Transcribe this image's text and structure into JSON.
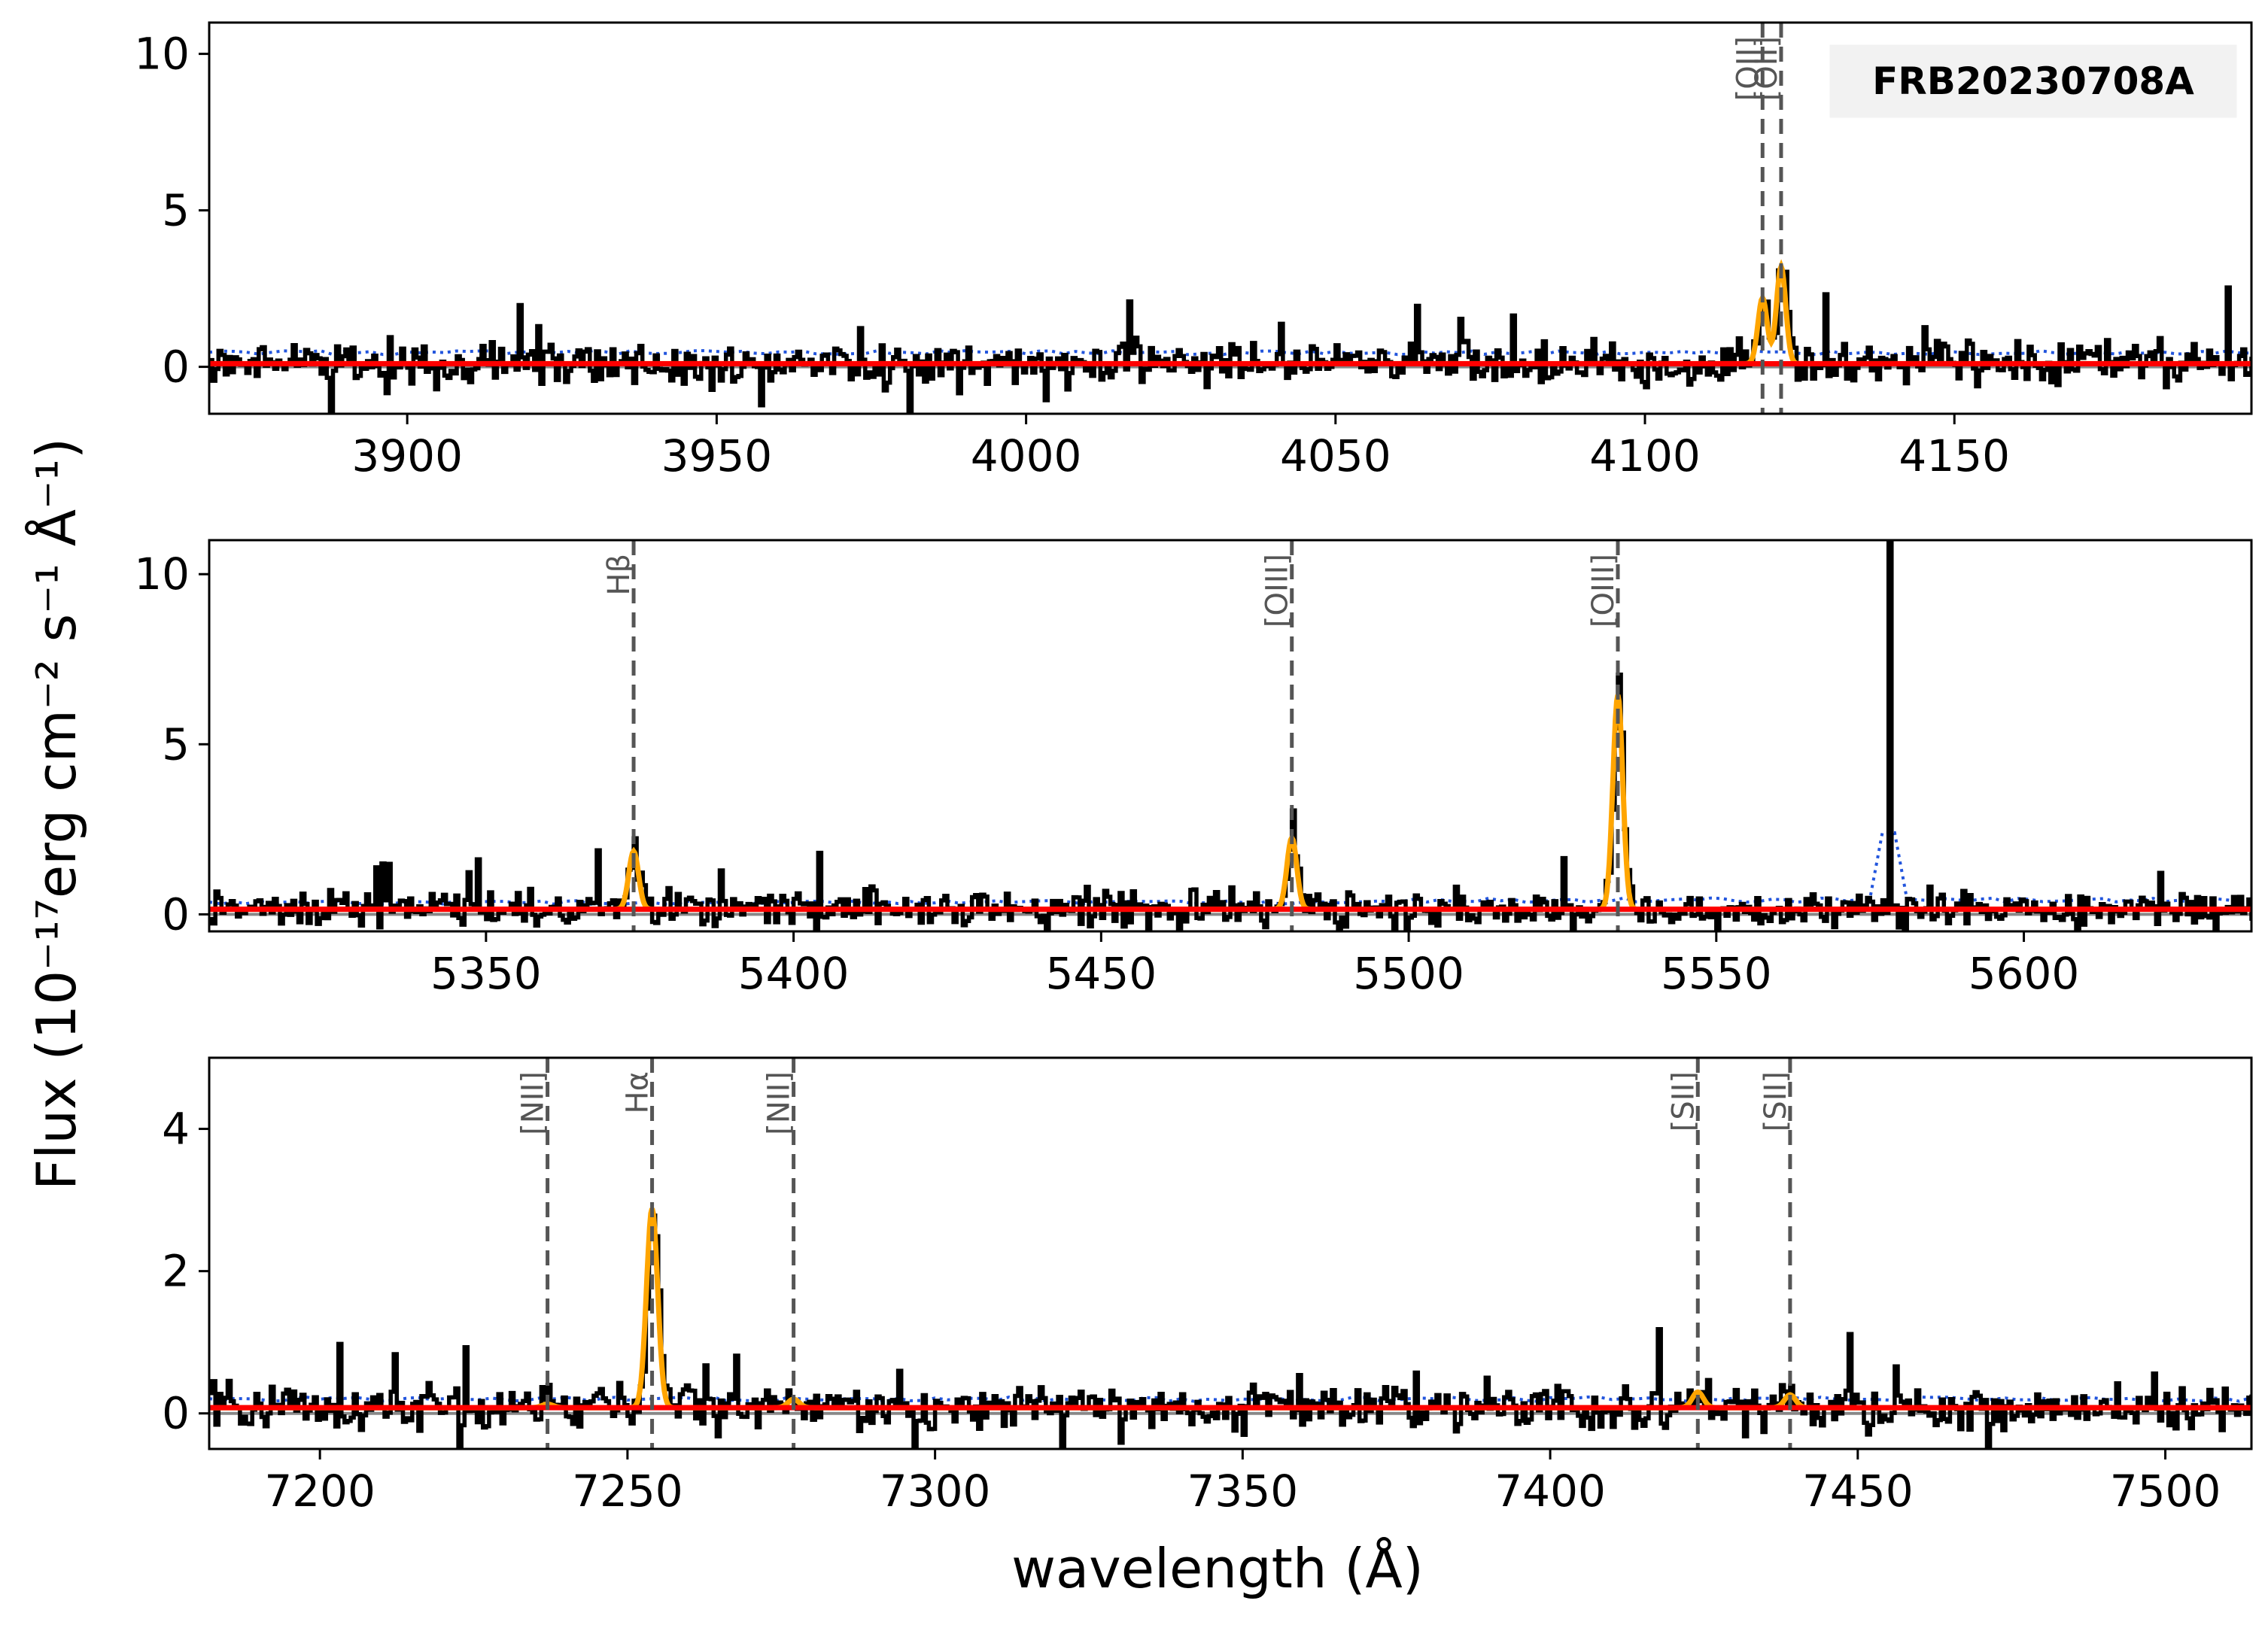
{
  "chart_data": [
    {
      "type": "line",
      "panel": "top",
      "xlim": [
        3868,
        4198
      ],
      "ylim": [
        -1.5,
        11
      ],
      "xticks": [
        "3900",
        "3950",
        "4000",
        "4050",
        "4100",
        "4150"
      ],
      "xtick_values": [
        3900,
        3950,
        4000,
        4050,
        4100,
        4150
      ],
      "yticks": [
        "0",
        "5",
        "10"
      ],
      "ytick_values": [
        0,
        5,
        10
      ],
      "continuum": 0.1,
      "noise_level": 0.45,
      "lines": [
        {
          "label": "[OII]",
          "x": 4119
        },
        {
          "label": "[OII]",
          "x": 4122
        }
      ],
      "fit_peaks": [
        {
          "x": 4119,
          "amp": 2.1,
          "sigma": 0.75
        },
        {
          "x": 4122,
          "amp": 3.1,
          "sigma": 0.75
        }
      ],
      "badge": "FRB20230708A"
    },
    {
      "type": "line",
      "panel": "middle",
      "xlim": [
        5305,
        5637
      ],
      "ylim": [
        -0.5,
        11
      ],
      "xticks": [
        "5350",
        "5400",
        "5450",
        "5500",
        "5550",
        "5600"
      ],
      "xtick_values": [
        5350,
        5400,
        5450,
        5500,
        5550,
        5600
      ],
      "yticks": [
        "0",
        "5",
        "10"
      ],
      "ytick_values": [
        0,
        5,
        10
      ],
      "continuum": 0.15,
      "noise_level": 0.35,
      "lines": [
        {
          "label": "Hβ",
          "x": 5374
        },
        {
          "label": "[OIII]",
          "x": 5481
        },
        {
          "label": "[OIII]",
          "x": 5534
        }
      ],
      "fit_peaks": [
        {
          "x": 5374,
          "amp": 1.7,
          "sigma": 0.8
        },
        {
          "x": 5481,
          "amp": 2.1,
          "sigma": 0.8
        },
        {
          "x": 5534,
          "amp": 6.3,
          "sigma": 0.8
        }
      ],
      "sky_spike": {
        "x": 5578,
        "y": 11
      }
    },
    {
      "type": "line",
      "panel": "bottom",
      "xlim": [
        7182,
        7514
      ],
      "ylim": [
        -0.5,
        5
      ],
      "xticks": [
        "7200",
        "7250",
        "7300",
        "7350",
        "7400",
        "7450",
        "7500"
      ],
      "xtick_values": [
        7200,
        7250,
        7300,
        7350,
        7400,
        7450,
        7500
      ],
      "yticks": [
        "0",
        "2",
        "4"
      ],
      "ytick_values": [
        0,
        2,
        4
      ],
      "continuum": 0.08,
      "noise_level": 0.2,
      "lines": [
        {
          "label": "[NII]",
          "x": 7237
        },
        {
          "label": "Hα",
          "x": 7254
        },
        {
          "label": "[NII]",
          "x": 7277
        },
        {
          "label": "[SII]",
          "x": 7424
        },
        {
          "label": "[SII]",
          "x": 7439
        }
      ],
      "fit_peaks": [
        {
          "x": 7237,
          "amp": 0.05,
          "sigma": 0.9
        },
        {
          "x": 7254,
          "amp": 2.8,
          "sigma": 0.9
        },
        {
          "x": 7277,
          "amp": 0.12,
          "sigma": 0.9
        },
        {
          "x": 7424,
          "amp": 0.22,
          "sigma": 0.9
        },
        {
          "x": 7439,
          "amp": 0.18,
          "sigma": 0.9
        }
      ]
    }
  ],
  "ylabel": "Flux (10⁻¹⁷erg cm⁻² s⁻¹ Å⁻¹)",
  "xlabel": "wavelength (Å)",
  "colors": {
    "data": "#000000",
    "fit": "#ffa500",
    "continuum": "#ff0000",
    "error": "#2255dd",
    "marker": "#555555"
  }
}
